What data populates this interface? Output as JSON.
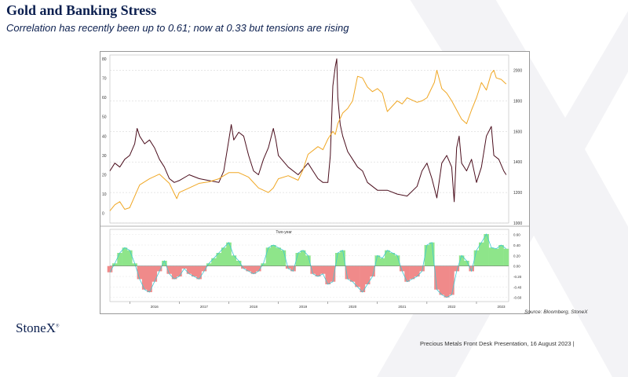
{
  "slide": {
    "title": "Gold and Banking Stress",
    "subtitle": "Correlation has recently been up to 0.61; now at 0.33 but tensions are rising",
    "source": "Source: Bloomberg, StoneX",
    "logo_text": "StoneX",
    "logo_mark": "®",
    "footer": "Precious Metals Front Desk Presentation, 16 August 2023 |"
  },
  "chart_data": [
    {
      "type": "line",
      "left_axis_ticks": [
        0,
        10,
        20,
        30,
        40,
        50,
        60,
        70,
        80
      ],
      "right_axis_ticks": [
        1000,
        1200,
        1400,
        1600,
        1800,
        2000
      ],
      "ylim_left": [
        -5,
        82
      ],
      "ylim_right": [
        1000,
        2100
      ],
      "xlim": [
        2015.6,
        2023.65
      ],
      "grid": true,
      "colors": {
        "vix": "#4a0d1c",
        "gold": "#f0a724"
      },
      "series": [
        {
          "key": "vix",
          "axis": "left",
          "x": [
            2015.6,
            2015.7,
            2015.8,
            2015.9,
            2016.0,
            2016.1,
            2016.15,
            2016.2,
            2016.3,
            2016.4,
            2016.5,
            2016.6,
            2016.7,
            2016.8,
            2016.9,
            2017.0,
            2017.2,
            2017.4,
            2017.6,
            2017.8,
            2017.9,
            2018.0,
            2018.05,
            2018.1,
            2018.2,
            2018.3,
            2018.4,
            2018.5,
            2018.6,
            2018.7,
            2018.8,
            2018.9,
            2018.95,
            2019.0,
            2019.2,
            2019.4,
            2019.6,
            2019.7,
            2019.8,
            2019.9,
            2020.0,
            2020.05,
            2020.1,
            2020.15,
            2020.18,
            2020.2,
            2020.25,
            2020.3,
            2020.4,
            2020.5,
            2020.6,
            2020.7,
            2020.8,
            2020.9,
            2021.0,
            2021.2,
            2021.4,
            2021.6,
            2021.8,
            2021.9,
            2022.0,
            2022.1,
            2022.2,
            2022.3,
            2022.4,
            2022.5,
            2022.55,
            2022.6,
            2022.65,
            2022.7,
            2022.8,
            2022.9,
            2023.0,
            2023.1,
            2023.2,
            2023.3,
            2023.35,
            2023.45,
            2023.55,
            2023.6
          ],
          "y": [
            22,
            26,
            24,
            28,
            30,
            36,
            44,
            40,
            36,
            38,
            34,
            28,
            24,
            18,
            16,
            17,
            20,
            18,
            17,
            16,
            22,
            38,
            46,
            38,
            42,
            40,
            30,
            22,
            20,
            28,
            34,
            44,
            38,
            30,
            24,
            20,
            26,
            22,
            18,
            16,
            16,
            30,
            66,
            76,
            80,
            60,
            46,
            40,
            32,
            28,
            24,
            22,
            16,
            14,
            12,
            12,
            10,
            9,
            14,
            22,
            26,
            18,
            8,
            26,
            30,
            24,
            6,
            34,
            40,
            26,
            22,
            28,
            16,
            24,
            40,
            45,
            30,
            28,
            22,
            20
          ]
        },
        {
          "key": "gold",
          "axis": "right",
          "x": [
            2015.6,
            2015.7,
            2015.8,
            2015.9,
            2016.0,
            2016.2,
            2016.4,
            2016.6,
            2016.8,
            2016.95,
            2017.0,
            2017.2,
            2017.4,
            2017.6,
            2017.8,
            2018.0,
            2018.2,
            2018.4,
            2018.6,
            2018.8,
            2018.9,
            2019.0,
            2019.2,
            2019.4,
            2019.5,
            2019.6,
            2019.8,
            2019.9,
            2020.0,
            2020.1,
            2020.15,
            2020.2,
            2020.3,
            2020.4,
            2020.5,
            2020.6,
            2020.7,
            2020.8,
            2020.9,
            2021.0,
            2021.1,
            2021.2,
            2021.4,
            2021.5,
            2021.6,
            2021.8,
            2021.9,
            2022.0,
            2022.15,
            2022.2,
            2022.3,
            2022.4,
            2022.5,
            2022.6,
            2022.7,
            2022.8,
            2022.9,
            2023.0,
            2023.1,
            2023.2,
            2023.3,
            2023.35,
            2023.4,
            2023.5,
            2023.6
          ],
          "y": [
            1080,
            1120,
            1140,
            1090,
            1100,
            1250,
            1290,
            1320,
            1260,
            1160,
            1200,
            1230,
            1260,
            1270,
            1290,
            1330,
            1330,
            1300,
            1230,
            1200,
            1230,
            1290,
            1310,
            1280,
            1350,
            1450,
            1500,
            1480,
            1550,
            1600,
            1580,
            1650,
            1720,
            1750,
            1800,
            1960,
            1950,
            1890,
            1860,
            1880,
            1850,
            1730,
            1800,
            1780,
            1820,
            1790,
            1800,
            1820,
            1920,
            2000,
            1880,
            1850,
            1800,
            1740,
            1680,
            1650,
            1740,
            1820,
            1920,
            1870,
            1980,
            2000,
            1950,
            1940,
            1910
          ]
        }
      ]
    },
    {
      "type": "area",
      "title": "Two-year",
      "y_ticks": [
        "0.60",
        "0.40",
        "0.20",
        "0.00",
        "-0.20",
        "-0.40",
        "-0.60"
      ],
      "ylim": [
        -0.68,
        0.7
      ],
      "xlim": [
        2015.6,
        2023.65
      ],
      "x_ticks": [
        2016,
        2017,
        2018,
        2019,
        2020,
        2021,
        2022,
        2023
      ],
      "colors": {
        "positive": "#8ee58a",
        "negative": "#f08a8a",
        "line": "#3ec9d3"
      },
      "x": [
        2015.6,
        2015.7,
        2015.8,
        2015.9,
        2016.0,
        2016.1,
        2016.2,
        2016.3,
        2016.4,
        2016.5,
        2016.6,
        2016.7,
        2016.8,
        2016.9,
        2017.0,
        2017.1,
        2017.2,
        2017.3,
        2017.4,
        2017.5,
        2017.6,
        2017.7,
        2017.8,
        2017.9,
        2018.0,
        2018.1,
        2018.2,
        2018.3,
        2018.4,
        2018.5,
        2018.6,
        2018.7,
        2018.8,
        2018.9,
        2019.0,
        2019.1,
        2019.2,
        2019.3,
        2019.4,
        2019.5,
        2019.6,
        2019.7,
        2019.8,
        2019.9,
        2020.0,
        2020.1,
        2020.2,
        2020.3,
        2020.4,
        2020.5,
        2020.6,
        2020.7,
        2020.8,
        2020.9,
        2021.0,
        2021.1,
        2021.2,
        2021.3,
        2021.4,
        2021.5,
        2021.6,
        2021.7,
        2021.8,
        2021.9,
        2022.0,
        2022.1,
        2022.2,
        2022.3,
        2022.4,
        2022.5,
        2022.6,
        2022.7,
        2022.8,
        2022.9,
        2023.0,
        2023.1,
        2023.2,
        2023.3,
        2023.4,
        2023.5,
        2023.6
      ],
      "y": [
        -0.12,
        0.05,
        0.25,
        0.35,
        0.3,
        0.05,
        -0.25,
        -0.45,
        -0.5,
        -0.3,
        -0.1,
        0.1,
        -0.15,
        -0.25,
        -0.2,
        -0.05,
        -0.15,
        -0.2,
        -0.25,
        -0.1,
        0.05,
        0.15,
        0.25,
        0.35,
        0.45,
        0.2,
        0.1,
        -0.05,
        -0.1,
        -0.15,
        -0.1,
        0.05,
        0.35,
        0.4,
        0.35,
        0.3,
        -0.05,
        -0.1,
        0.25,
        0.3,
        0.2,
        -0.15,
        -0.2,
        -0.15,
        -0.35,
        -0.3,
        0.25,
        0.3,
        -0.25,
        -0.3,
        -0.4,
        -0.5,
        -0.35,
        -0.2,
        0.2,
        0.15,
        0.3,
        0.25,
        0.2,
        -0.1,
        -0.3,
        -0.25,
        -0.2,
        -0.1,
        0.4,
        0.45,
        -0.45,
        -0.55,
        -0.6,
        -0.55,
        -0.1,
        0.2,
        0.1,
        -0.1,
        0.3,
        0.45,
        0.61,
        0.35,
        0.33,
        0.4,
        0.33
      ]
    }
  ]
}
